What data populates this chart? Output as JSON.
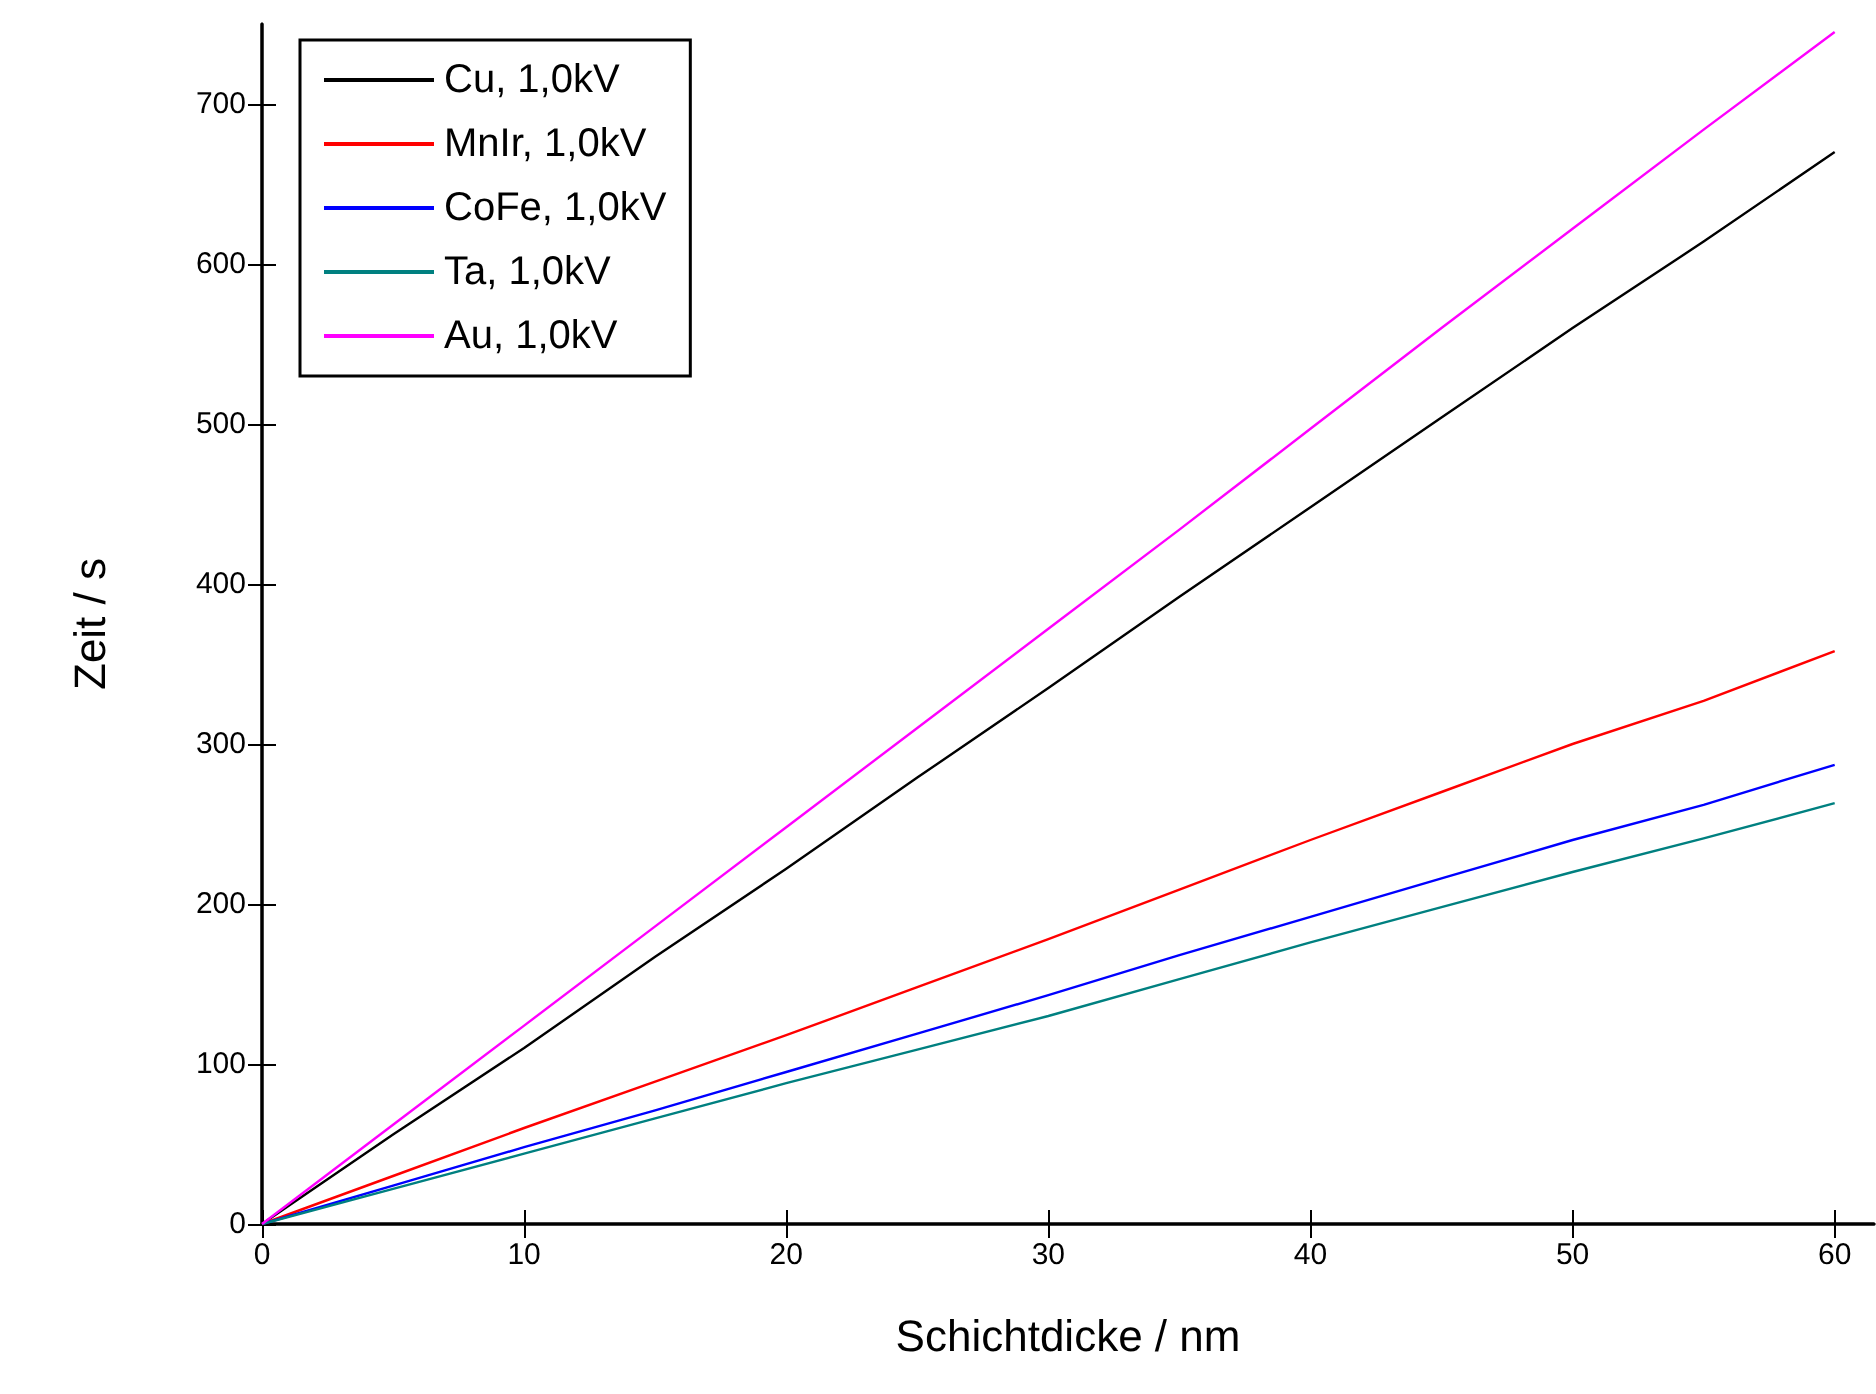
{
  "chart_data": {
    "type": "line",
    "xlabel": "Schichtdicke / nm",
    "ylabel": "Zeit / s",
    "x": [
      0,
      5,
      10,
      15,
      20,
      25,
      30,
      35,
      40,
      45,
      50,
      55,
      60
    ],
    "series": [
      {
        "name": "Cu, 1,0kV",
        "color": "#000000",
        "values": [
          0,
          56,
          110,
          167,
          222,
          279,
          335,
          392,
          448,
          504,
          560,
          614,
          670
        ]
      },
      {
        "name": "MnIr, 1,0kV",
        "color": "#ff0000",
        "values": [
          0,
          30,
          60,
          89,
          118,
          148,
          178,
          209,
          240,
          270,
          300,
          327,
          358
        ]
      },
      {
        "name": "CoFe, 1,0kV",
        "color": "#0000ff",
        "values": [
          0,
          24,
          48,
          71,
          95,
          119,
          143,
          168,
          192,
          216,
          240,
          262,
          287
        ]
      },
      {
        "name": "Ta, 1,0kV",
        "color": "#008080",
        "values": [
          0,
          22,
          44,
          66,
          88,
          109,
          130,
          153,
          176,
          198,
          220,
          241,
          263
        ]
      },
      {
        "name": "Au, 1,0kV",
        "color": "#ff00ff",
        "values": [
          0,
          62,
          124,
          186,
          248,
          310,
          372,
          434,
          497,
          560,
          622,
          684,
          745
        ]
      }
    ],
    "xlim": [
      0,
      61.5
    ],
    "xticks": [
      0,
      10,
      20,
      30,
      40,
      50,
      60
    ],
    "ylim": [
      0,
      750
    ],
    "yticks": [
      0,
      100,
      200,
      300,
      400,
      500,
      600,
      700
    ],
    "grid": false,
    "legend": "top left",
    "marker": "none",
    "line_style": "solid"
  }
}
